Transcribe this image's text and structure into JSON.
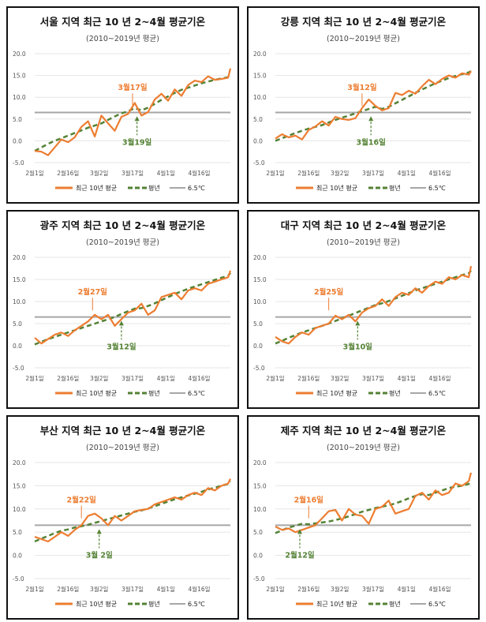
{
  "chart_data": [
    {
      "type": "line",
      "title": "서울 지역 최근 10 년 2~4월 평균기온",
      "subtitle": "(2010~2019년 평균)",
      "orange": [
        -2.3,
        -2.5,
        -3.3,
        -1.5,
        0.3,
        -0.3,
        0.8,
        3.2,
        4.5,
        1.0,
        5.8,
        4.0,
        2.3,
        5.5,
        6.2,
        8.7,
        5.8,
        6.6,
        9.5,
        10.8,
        9.2,
        11.8,
        10.3,
        12.8,
        13.8,
        13.5,
        14.8,
        14.0,
        14.2,
        14.5,
        16.6
      ],
      "green": [
        -2.3,
        -1.5,
        -0.7,
        0,
        0.6,
        1.2,
        1.8,
        2.4,
        3,
        3.5,
        4,
        4.8,
        5.6,
        6.3,
        6.8,
        7.5,
        7.0,
        7.6,
        8.5,
        9.4,
        10.2,
        11,
        11.7,
        12.2,
        12.7,
        13.2,
        13.6,
        14,
        14.3,
        14.6,
        15.2
      ],
      "orange_annot": {
        "label": "3월17일",
        "day": 44
      },
      "green_annot": {
        "label": "3월19일",
        "day": 46
      }
    },
    {
      "type": "line",
      "title": "강릉 지역 최근 10 년 2~4월 평균기온",
      "subtitle": "(2010~2019년 평균)",
      "orange": [
        0.5,
        1.5,
        0.8,
        1.2,
        0.3,
        2.5,
        3.3,
        4.5,
        3.5,
        5.5,
        5.0,
        4.8,
        5.2,
        7.5,
        9.5,
        8.0,
        7.0,
        7.5,
        11.0,
        10.5,
        11.5,
        10.8,
        12.5,
        14.0,
        13.0,
        14.2,
        15.0,
        14.5,
        15.5,
        15.2,
        16.0
      ],
      "green": [
        0,
        0.6,
        1.2,
        1.8,
        2.3,
        2.8,
        3.2,
        3.6,
        4.2,
        4.8,
        5.3,
        5.8,
        6.3,
        6.8,
        7.3,
        7.8,
        7.3,
        7.8,
        8.6,
        9.4,
        10.2,
        11,
        11.8,
        12.5,
        13.2,
        13.8,
        14.4,
        14.9,
        15.3,
        15.7,
        16.0
      ],
      "orange_annot": {
        "label": "3월12일",
        "day": 39
      },
      "green_annot": {
        "label": "3월16일",
        "day": 43
      }
    },
    {
      "type": "line",
      "title": "광주 지역 최근 10 년 2~4월 평균기온",
      "subtitle": "(2010~2019년 평균)",
      "orange": [
        1.8,
        0.5,
        1.5,
        2.5,
        3.0,
        2.2,
        3.5,
        4.5,
        5.5,
        7.0,
        6.0,
        7.0,
        4.5,
        6.0,
        7.5,
        8.0,
        9.5,
        7.0,
        8.0,
        11.0,
        11.5,
        12.0,
        10.5,
        12.5,
        13.0,
        12.5,
        14.0,
        14.5,
        15.0,
        15.5,
        17.0
      ],
      "green": [
        0.3,
        0.9,
        1.5,
        2.0,
        2.5,
        3.0,
        3.5,
        4.0,
        4.5,
        5.0,
        5.5,
        6.0,
        6.5,
        7.2,
        7.8,
        8.4,
        8.5,
        9.0,
        9.6,
        10.3,
        11.0,
        11.7,
        12.3,
        12.9,
        13.4,
        13.9,
        14.4,
        14.9,
        15.4,
        15.8,
        16.5
      ],
      "orange_annot": {
        "label": "2월27일",
        "day": 26
      },
      "green_annot": {
        "label": "3월12일",
        "day": 39
      }
    },
    {
      "type": "line",
      "title": "대구 지역 최근 10 년 2~4월 평균기온",
      "subtitle": "(2010~2019년 평균)",
      "orange": [
        2.0,
        1.0,
        0.5,
        2.0,
        3.0,
        2.5,
        4.0,
        4.5,
        5.0,
        6.8,
        6.0,
        7.0,
        5.5,
        7.5,
        8.5,
        9.0,
        10.5,
        9.0,
        11.0,
        12.0,
        11.5,
        13.0,
        12.0,
        13.5,
        14.5,
        14.0,
        15.5,
        15.0,
        16.0,
        15.5,
        18.0
      ],
      "green": [
        0.5,
        1.1,
        1.8,
        2.4,
        3.0,
        3.5,
        4.0,
        4.5,
        5.0,
        5.6,
        6.2,
        6.8,
        7.4,
        8.0,
        8.6,
        9.2,
        9.6,
        10.1,
        10.7,
        11.3,
        11.9,
        12.5,
        13.0,
        13.5,
        14.0,
        14.5,
        15.0,
        15.5,
        16.0,
        16.4,
        17.0
      ],
      "orange_annot": {
        "label": "2월25일",
        "day": 24
      },
      "green_annot": {
        "label": "3월10일",
        "day": 37
      }
    },
    {
      "type": "line",
      "title": "부산 지역 최근 10 년 2~4월 평균기온",
      "subtitle": "(2010~2019년 평균)",
      "orange": [
        4.0,
        3.5,
        3.0,
        4.0,
        5.0,
        4.2,
        5.5,
        6.5,
        8.5,
        9.0,
        8.0,
        6.5,
        8.5,
        7.5,
        8.5,
        9.5,
        9.8,
        10.0,
        11.0,
        11.5,
        12.0,
        12.5,
        12.0,
        13.0,
        13.5,
        13.0,
        14.5,
        14.0,
        15.0,
        15.5,
        16.5
      ],
      "green": [
        3.0,
        3.6,
        4.2,
        4.8,
        5.3,
        5.6,
        6.0,
        6.3,
        6.6,
        7.0,
        7.4,
        7.8,
        8.2,
        8.6,
        9.0,
        9.4,
        9.7,
        10.1,
        10.6,
        11.1,
        11.6,
        12.1,
        12.5,
        12.9,
        13.3,
        13.7,
        14.2,
        14.6,
        15.0,
        15.4,
        16.0
      ],
      "orange_annot": {
        "label": "2월22일",
        "day": 21
      },
      "green_annot": {
        "label": "3월 2일",
        "day": 29
      }
    },
    {
      "type": "line",
      "title": "제주 지역 최근 10 년 2~4월 평균기온",
      "subtitle": "(2010~2019년 평균)",
      "orange": [
        6.2,
        5.5,
        5.8,
        5.0,
        5.5,
        6.0,
        6.5,
        8.0,
        9.5,
        9.8,
        7.5,
        10.0,
        8.8,
        8.5,
        6.8,
        10.0,
        10.5,
        11.8,
        9.0,
        9.5,
        10.0,
        12.8,
        13.5,
        12.0,
        14.0,
        13.0,
        13.5,
        15.5,
        15.0,
        16.0,
        17.8
      ],
      "green": [
        4.8,
        5.4,
        6.0,
        6.4,
        6.8,
        6.7,
        6.9,
        7.1,
        7.3,
        7.6,
        8.0,
        8.4,
        8.9,
        9.4,
        9.8,
        10.2,
        10.5,
        10.8,
        11.2,
        11.7,
        12.3,
        12.8,
        13.2,
        13.0,
        13.5,
        14.0,
        14.5,
        14.8,
        15.0,
        15.4,
        16.0
      ],
      "orange_annot": {
        "label": "2월16일",
        "day": 15
      },
      "green_annot": {
        "label": "2월12일",
        "day": 11
      }
    }
  ],
  "x_days": [
    0,
    3,
    6,
    9,
    12,
    15,
    18,
    21,
    24,
    27,
    30,
    33,
    36,
    39,
    42,
    45,
    48,
    51,
    54,
    57,
    60,
    63,
    66,
    69,
    72,
    75,
    78,
    81,
    84,
    87,
    88
  ],
  "x_ticks": [
    {
      "day": 0,
      "label": "2월1일"
    },
    {
      "day": 15,
      "label": "2월16일"
    },
    {
      "day": 29,
      "label": "3월2일"
    },
    {
      "day": 44,
      "label": "3월17일"
    },
    {
      "day": 59,
      "label": "4월1일"
    },
    {
      "day": 74,
      "label": "4월16일"
    }
  ],
  "y_ticks": [
    "-5.0",
    "0.0",
    "5.0",
    "10.0",
    "15.0",
    "20.0"
  ],
  "ylim": [
    -5,
    20
  ],
  "threshold": 6.5,
  "legend": {
    "orange": "최근 10년 평균",
    "green": "평년",
    "gray": "6.5℃"
  },
  "colors": {
    "orange": "#ED7D31",
    "green": "#548235",
    "gray": "#A6A6A6"
  }
}
